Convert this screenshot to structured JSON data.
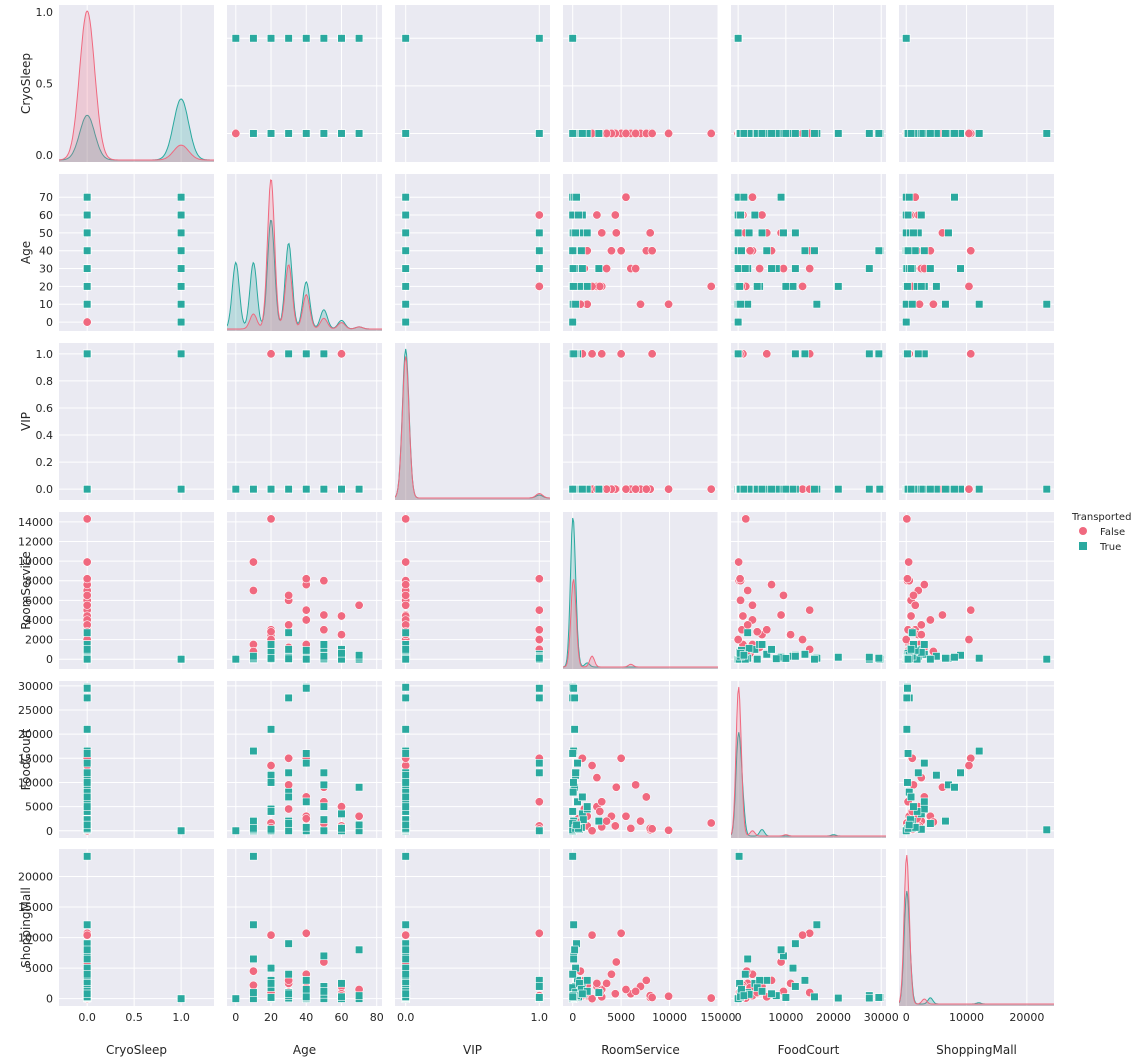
{
  "chart_data": {
    "type": "scatter",
    "kind": "pairplot",
    "variables": [
      "CryoSleep",
      "Age",
      "VIP",
      "RoomService",
      "FoodCourt",
      "ShoppingMall"
    ],
    "hue": "Transported",
    "colors": {
      "False": "#f0697f",
      "True": "#2aa99f"
    },
    "markers": {
      "False": "circle",
      "True": "square"
    },
    "axes": {
      "CryoSleep": {
        "lim": [
          -0.3,
          1.35
        ],
        "ticks": [
          0.0,
          0.5,
          1.0
        ],
        "tick_labels": [
          "0.0",
          "0.5",
          "1.0"
        ]
      },
      "Age": {
        "lim": [
          -5,
          83
        ],
        "ticks": [
          0,
          10,
          20,
          30,
          40,
          50,
          60,
          70
        ],
        "tick_labels": [
          "0",
          "10",
          "20",
          "30",
          "40",
          "50",
          "60",
          "70"
        ],
        "xticks": [
          0,
          20,
          40,
          60,
          80
        ],
        "xtick_labels": [
          "0",
          "20",
          "40",
          "60",
          "80"
        ]
      },
      "VIP": {
        "lim": [
          -0.08,
          1.08
        ],
        "ticks": [
          0.0,
          0.2,
          0.4,
          0.6,
          0.8,
          1.0
        ],
        "tick_labels": [
          "0.0",
          "0.2",
          "0.4",
          "0.6",
          "0.8",
          "1.0"
        ],
        "xticks": [
          0.0,
          1.0
        ],
        "xtick_labels": [
          "0.0",
          "1.0"
        ]
      },
      "RoomService": {
        "lim": [
          -1000,
          15000
        ],
        "ticks": [
          0,
          2000,
          4000,
          6000,
          8000,
          10000,
          12000,
          14000
        ],
        "tick_labels": [
          "0",
          "2000",
          "4000",
          "6000",
          "8000",
          "10000",
          "12000",
          "14000"
        ],
        "xticks": [
          0,
          5000,
          10000,
          15000
        ],
        "xtick_labels": [
          "0",
          "5000",
          "10000",
          "15000"
        ]
      },
      "FoodCourt": {
        "lim": [
          -1500,
          31000
        ],
        "ticks": [
          0,
          5000,
          10000,
          15000,
          20000,
          25000,
          30000
        ],
        "tick_labels": [
          "0",
          "5000",
          "10000",
          "15000",
          "20000",
          "25000",
          "30000"
        ],
        "xticks": [
          0,
          10000,
          20000,
          30000
        ],
        "xtick_labels": [
          "0",
          "10000",
          "20000",
          "30000"
        ]
      },
      "ShoppingMall": {
        "lim": [
          -1200,
          24500
        ],
        "ticks": [
          0,
          5000,
          10000,
          15000,
          20000
        ],
        "tick_labels": [
          "0",
          "5000",
          "10000",
          "15000",
          "20000"
        ],
        "xticks": [
          0,
          10000,
          20000
        ],
        "xtick_labels": [
          "0",
          "10000",
          "20000"
        ]
      }
    },
    "points": {
      "False": [
        [
          0,
          20,
          0,
          0,
          0,
          0
        ],
        [
          0,
          30,
          0,
          500,
          1000,
          300
        ],
        [
          0,
          40,
          0,
          1500,
          3000,
          500
        ],
        [
          0,
          20,
          0,
          3000,
          800,
          1500
        ],
        [
          0,
          30,
          0,
          6000,
          500,
          800
        ],
        [
          0,
          40,
          0,
          8000,
          200,
          200
        ],
        [
          0,
          20,
          0,
          14300,
          1600,
          100
        ],
        [
          0,
          10,
          0,
          9900,
          100,
          400
        ],
        [
          0,
          60,
          0,
          2500,
          5000,
          2000
        ],
        [
          0,
          50,
          0,
          4500,
          9000,
          6000
        ],
        [
          0,
          40,
          1,
          5000,
          15000,
          10700
        ],
        [
          0,
          20,
          0,
          2000,
          13500,
          10400
        ],
        [
          0,
          30,
          0,
          1000,
          15000,
          1000
        ],
        [
          0,
          70,
          0,
          5500,
          3000,
          1500
        ],
        [
          0,
          50,
          0,
          8000,
          500,
          500
        ],
        [
          0,
          10,
          0,
          7000,
          2000,
          2000
        ],
        [
          0,
          60,
          0,
          4400,
          1000,
          800
        ],
        [
          0,
          30,
          0,
          6500,
          9500,
          1200
        ],
        [
          0,
          40,
          0,
          7600,
          7000,
          3000
        ],
        [
          0,
          20,
          0,
          2500,
          11000,
          2500
        ],
        [
          0,
          50,
          1,
          3000,
          6000,
          300
        ],
        [
          0,
          60,
          1,
          1000,
          1000,
          500
        ],
        [
          0,
          40,
          0,
          4000,
          3000,
          4000
        ],
        [
          0,
          30,
          0,
          3500,
          2000,
          2500
        ],
        [
          0,
          20,
          0,
          2800,
          4000,
          1000
        ],
        [
          0,
          10,
          0,
          1500,
          1000,
          2200
        ],
        [
          0,
          40,
          1,
          8200,
          400,
          200
        ],
        [
          1,
          60,
          1,
          0,
          0,
          0
        ],
        [
          1,
          40,
          0,
          0,
          0,
          0
        ],
        [
          1,
          20,
          0,
          0,
          0,
          0
        ],
        [
          0,
          20,
          1,
          2000,
          0,
          0
        ],
        [
          0,
          30,
          0,
          1200,
          4500,
          3000
        ],
        [
          0,
          40,
          0,
          600,
          2500,
          1800
        ],
        [
          0,
          50,
          0,
          300,
          1500,
          900
        ],
        [
          0,
          60,
          0,
          200,
          600,
          100
        ],
        [
          0,
          70,
          0,
          100,
          300,
          50
        ],
        [
          0,
          10,
          0,
          800,
          1800,
          4500
        ],
        [
          0,
          20,
          0,
          400,
          700,
          2000
        ],
        [
          0,
          30,
          0,
          200,
          300,
          1100
        ],
        [
          0,
          0,
          0,
          0,
          0,
          0
        ]
      ],
      "True": [
        [
          1,
          0,
          0,
          0,
          0,
          0
        ],
        [
          1,
          10,
          0,
          0,
          0,
          0
        ],
        [
          1,
          20,
          0,
          0,
          0,
          0
        ],
        [
          1,
          30,
          0,
          0,
          0,
          0
        ],
        [
          1,
          40,
          0,
          0,
          0,
          0
        ],
        [
          1,
          50,
          0,
          0,
          0,
          0
        ],
        [
          1,
          60,
          0,
          0,
          0,
          0
        ],
        [
          1,
          70,
          0,
          0,
          0,
          0
        ],
        [
          1,
          40,
          1,
          0,
          0,
          0
        ],
        [
          0,
          10,
          0,
          0,
          200,
          23300
        ],
        [
          0,
          30,
          0,
          0,
          27500,
          500
        ],
        [
          0,
          40,
          0,
          0,
          29700,
          200
        ],
        [
          0,
          20,
          0,
          200,
          21000,
          100
        ],
        [
          0,
          10,
          0,
          100,
          16500,
          12100
        ],
        [
          0,
          30,
          0,
          400,
          12000,
          9000
        ],
        [
          0,
          50,
          0,
          100,
          9500,
          7000
        ],
        [
          0,
          70,
          0,
          200,
          9000,
          8000
        ],
        [
          0,
          20,
          0,
          300,
          11500,
          5000
        ],
        [
          0,
          40,
          0,
          500,
          6000,
          3000
        ],
        [
          0,
          60,
          0,
          1000,
          3500,
          2500
        ],
        [
          0,
          30,
          0,
          2700,
          2000,
          1000
        ],
        [
          0,
          20,
          0,
          1500,
          4500,
          3000
        ],
        [
          0,
          10,
          0,
          100,
          2000,
          6500
        ],
        [
          0,
          40,
          1,
          500,
          14000,
          3000
        ],
        [
          0,
          50,
          1,
          300,
          12000,
          2000
        ],
        [
          0,
          30,
          1,
          200,
          27500,
          100
        ],
        [
          0,
          40,
          1,
          100,
          29500,
          200
        ],
        [
          0,
          20,
          0,
          0,
          4000,
          1800
        ],
        [
          0,
          30,
          0,
          0,
          1500,
          4000
        ],
        [
          0,
          10,
          0,
          300,
          500,
          1000
        ],
        [
          0,
          20,
          0,
          700,
          300,
          2500
        ],
        [
          0,
          40,
          0,
          900,
          700,
          1500
        ],
        [
          0,
          50,
          0,
          1100,
          2300,
          700
        ],
        [
          0,
          60,
          0,
          600,
          500,
          300
        ],
        [
          0,
          70,
          0,
          400,
          1200,
          500
        ],
        [
          0,
          30,
          0,
          50,
          8000,
          500
        ],
        [
          0,
          20,
          0,
          80,
          10000,
          200
        ],
        [
          0,
          40,
          0,
          0,
          16000,
          300
        ],
        [
          0,
          50,
          0,
          1500,
          5000,
          1200
        ],
        [
          0,
          30,
          0,
          1000,
          7000,
          800
        ]
      ]
    },
    "kde": {
      "CryoSleep": {
        "False": [
          [
            0,
            1.0
          ],
          [
            1,
            0.1
          ]
        ],
        "True": [
          [
            0,
            0.3
          ],
          [
            1,
            0.41
          ]
        ],
        "bw": 0.08
      },
      "Age": {
        "False": [
          [
            10,
            0.07
          ],
          [
            20,
            0.7
          ],
          [
            30,
            0.3
          ],
          [
            40,
            0.16
          ],
          [
            50,
            0.05
          ],
          [
            60,
            0.03
          ],
          [
            70,
            0.01
          ]
        ],
        "True": [
          [
            0,
            0.31
          ],
          [
            10,
            0.31
          ],
          [
            20,
            0.51
          ],
          [
            30,
            0.4
          ],
          [
            40,
            0.22
          ],
          [
            50,
            0.09
          ],
          [
            60,
            0.04
          ],
          [
            70,
            0.01
          ]
        ],
        "bw": 2.0
      },
      "VIP": {
        "False": [
          [
            0,
            0.95
          ],
          [
            1,
            0.03
          ]
        ],
        "True": [
          [
            0,
            1.0
          ],
          [
            1,
            0.02
          ]
        ],
        "bw": 0.025
      },
      "RoomService": {
        "False": [
          [
            0,
            0.4
          ],
          [
            200,
            0.3
          ],
          [
            2000,
            0.08
          ],
          [
            6000,
            0.02
          ]
        ],
        "True": [
          [
            0,
            1.0
          ],
          [
            300,
            0.2
          ],
          [
            1500,
            0.03
          ]
        ],
        "bw": 250
      },
      "FoodCourt": {
        "False": [
          [
            0,
            0.95
          ],
          [
            500,
            0.3
          ],
          [
            3000,
            0.04
          ],
          [
            10000,
            0.01
          ]
        ],
        "True": [
          [
            0,
            0.7
          ],
          [
            800,
            0.3
          ],
          [
            5000,
            0.05
          ],
          [
            20000,
            0.01
          ]
        ],
        "bw": 500
      },
      "ShoppingMall": {
        "False": [
          [
            0,
            1.0
          ],
          [
            400,
            0.3
          ],
          [
            3000,
            0.04
          ]
        ],
        "True": [
          [
            0,
            0.75
          ],
          [
            500,
            0.3
          ],
          [
            4000,
            0.05
          ],
          [
            12000,
            0.01
          ]
        ],
        "bw": 400
      }
    },
    "legend": {
      "title": "Transported",
      "entries": [
        "False",
        "True"
      ],
      "placement": "right"
    },
    "grid": true,
    "background": "#eaeaf2"
  }
}
